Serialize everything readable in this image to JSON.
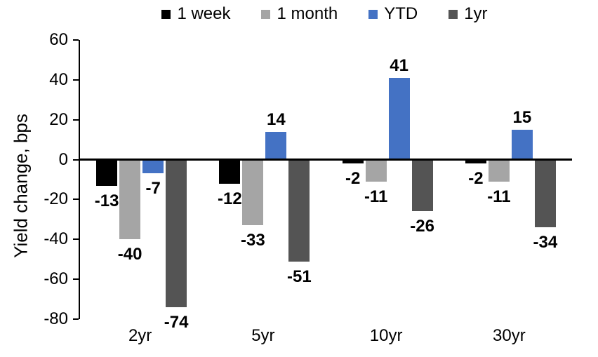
{
  "chart_data": {
    "type": "bar",
    "title": "",
    "xlabel": "",
    "ylabel": "Yield change, bps",
    "categories": [
      "2yr",
      "5yr",
      "10yr",
      "30yr"
    ],
    "series": [
      {
        "name": "1 week",
        "color": "#000000",
        "values": [
          -13,
          -12,
          -2,
          -2
        ]
      },
      {
        "name": "1 month",
        "color": "#A5A5A5",
        "values": [
          -40,
          -33,
          -11,
          -11
        ]
      },
      {
        "name": "YTD",
        "color": "#4472C4",
        "values": [
          -7,
          14,
          41,
          15
        ]
      },
      {
        "name": "1yr",
        "color": "#545454",
        "values": [
          -74,
          -51,
          -26,
          -34
        ]
      }
    ],
    "ylim": [
      -80,
      60
    ],
    "yticks": [
      60,
      40,
      20,
      0,
      -20,
      -40,
      -60,
      -80
    ],
    "legend_position": "top",
    "grid": false,
    "data_labels": true,
    "axis_color": "#000000",
    "background_color": "#FFFFFF"
  }
}
